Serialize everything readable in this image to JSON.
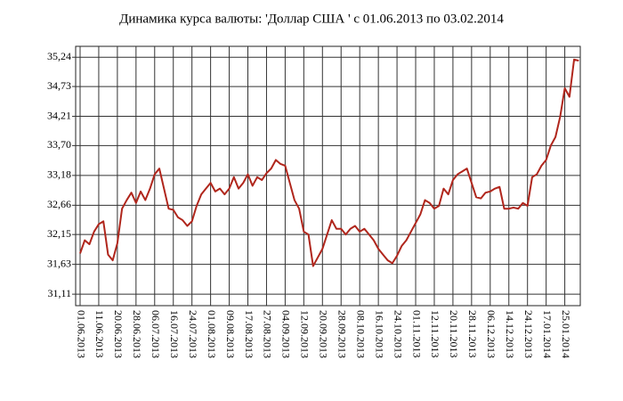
{
  "chart_data": {
    "type": "line",
    "title": "Динамика курса валюты: 'Доллар США ' с 01.06.2013 по 03.02.2014",
    "color": "#b0261c",
    "grid": true,
    "categories": [
      "01.06.2013",
      null,
      null,
      null,
      "11.06.2013",
      null,
      null,
      null,
      "20.06.2013",
      null,
      null,
      null,
      "28.06.2013",
      null,
      null,
      null,
      "06.07.2013",
      null,
      null,
      null,
      "16.07.2013",
      null,
      null,
      null,
      "24.07.2013",
      null,
      null,
      null,
      "01.08.2013",
      null,
      null,
      null,
      "09.08.2013",
      null,
      null,
      null,
      "17.08.2013",
      null,
      null,
      null,
      "27.08.2013",
      null,
      null,
      null,
      "04.09.2013",
      null,
      null,
      null,
      "12.09.2013",
      null,
      null,
      null,
      "20.09.2013",
      null,
      null,
      null,
      "28.09.2013",
      null,
      null,
      null,
      "08.10.2013",
      null,
      null,
      null,
      "16.10.2013",
      null,
      null,
      null,
      "24.10.2013",
      null,
      null,
      null,
      "01.11.2013",
      null,
      null,
      null,
      "12.11.2013",
      null,
      null,
      null,
      "20.11.2013",
      null,
      null,
      null,
      "28.11.2013",
      null,
      null,
      null,
      "06.12.2013",
      null,
      null,
      null,
      "14.12.2013",
      null,
      null,
      null,
      "24.12.2013",
      null,
      null,
      null,
      "17.01.2014",
      null,
      null,
      null,
      "25.01.2014",
      null,
      null,
      null
    ],
    "values": [
      31.82,
      32.05,
      31.98,
      32.2,
      32.33,
      32.38,
      31.8,
      31.7,
      32.0,
      32.6,
      32.75,
      32.88,
      32.7,
      32.9,
      32.75,
      32.95,
      33.2,
      33.3,
      32.95,
      32.6,
      32.58,
      32.45,
      32.4,
      32.3,
      32.38,
      32.65,
      32.85,
      32.95,
      33.05,
      32.9,
      32.95,
      32.85,
      32.95,
      33.15,
      32.95,
      33.05,
      33.2,
      33.0,
      33.15,
      33.1,
      33.22,
      33.3,
      33.45,
      33.38,
      33.35,
      33.05,
      32.75,
      32.6,
      32.2,
      32.15,
      31.6,
      31.75,
      31.9,
      32.15,
      32.4,
      32.25,
      32.25,
      32.15,
      32.25,
      32.3,
      32.2,
      32.25,
      32.15,
      32.05,
      31.9,
      31.8,
      31.7,
      31.65,
      31.78,
      31.95,
      32.05,
      32.2,
      32.35,
      32.5,
      32.75,
      32.7,
      32.6,
      32.65,
      32.95,
      32.85,
      33.1,
      33.2,
      33.25,
      33.3,
      33.05,
      32.8,
      32.78,
      32.88,
      32.9,
      32.95,
      32.98,
      32.6,
      32.6,
      32.62,
      32.6,
      32.7,
      32.65,
      33.15,
      33.2,
      33.35,
      33.45,
      33.7,
      33.85,
      34.2,
      34.7,
      34.55,
      35.2,
      35.18
    ],
    "ylim": [
      30.91,
      35.43
    ],
    "yticks": [
      {
        "value": 31.11,
        "label": "31,11"
      },
      {
        "value": 31.63,
        "label": "31,63"
      },
      {
        "value": 32.15,
        "label": "32,15"
      },
      {
        "value": 32.66,
        "label": "32,66"
      },
      {
        "value": 33.18,
        "label": "33,18"
      },
      {
        "value": 33.7,
        "label": "33,70"
      },
      {
        "value": 34.21,
        "label": "34,21"
      },
      {
        "value": 34.73,
        "label": "34,73"
      },
      {
        "value": 35.24,
        "label": "35,24"
      }
    ]
  }
}
